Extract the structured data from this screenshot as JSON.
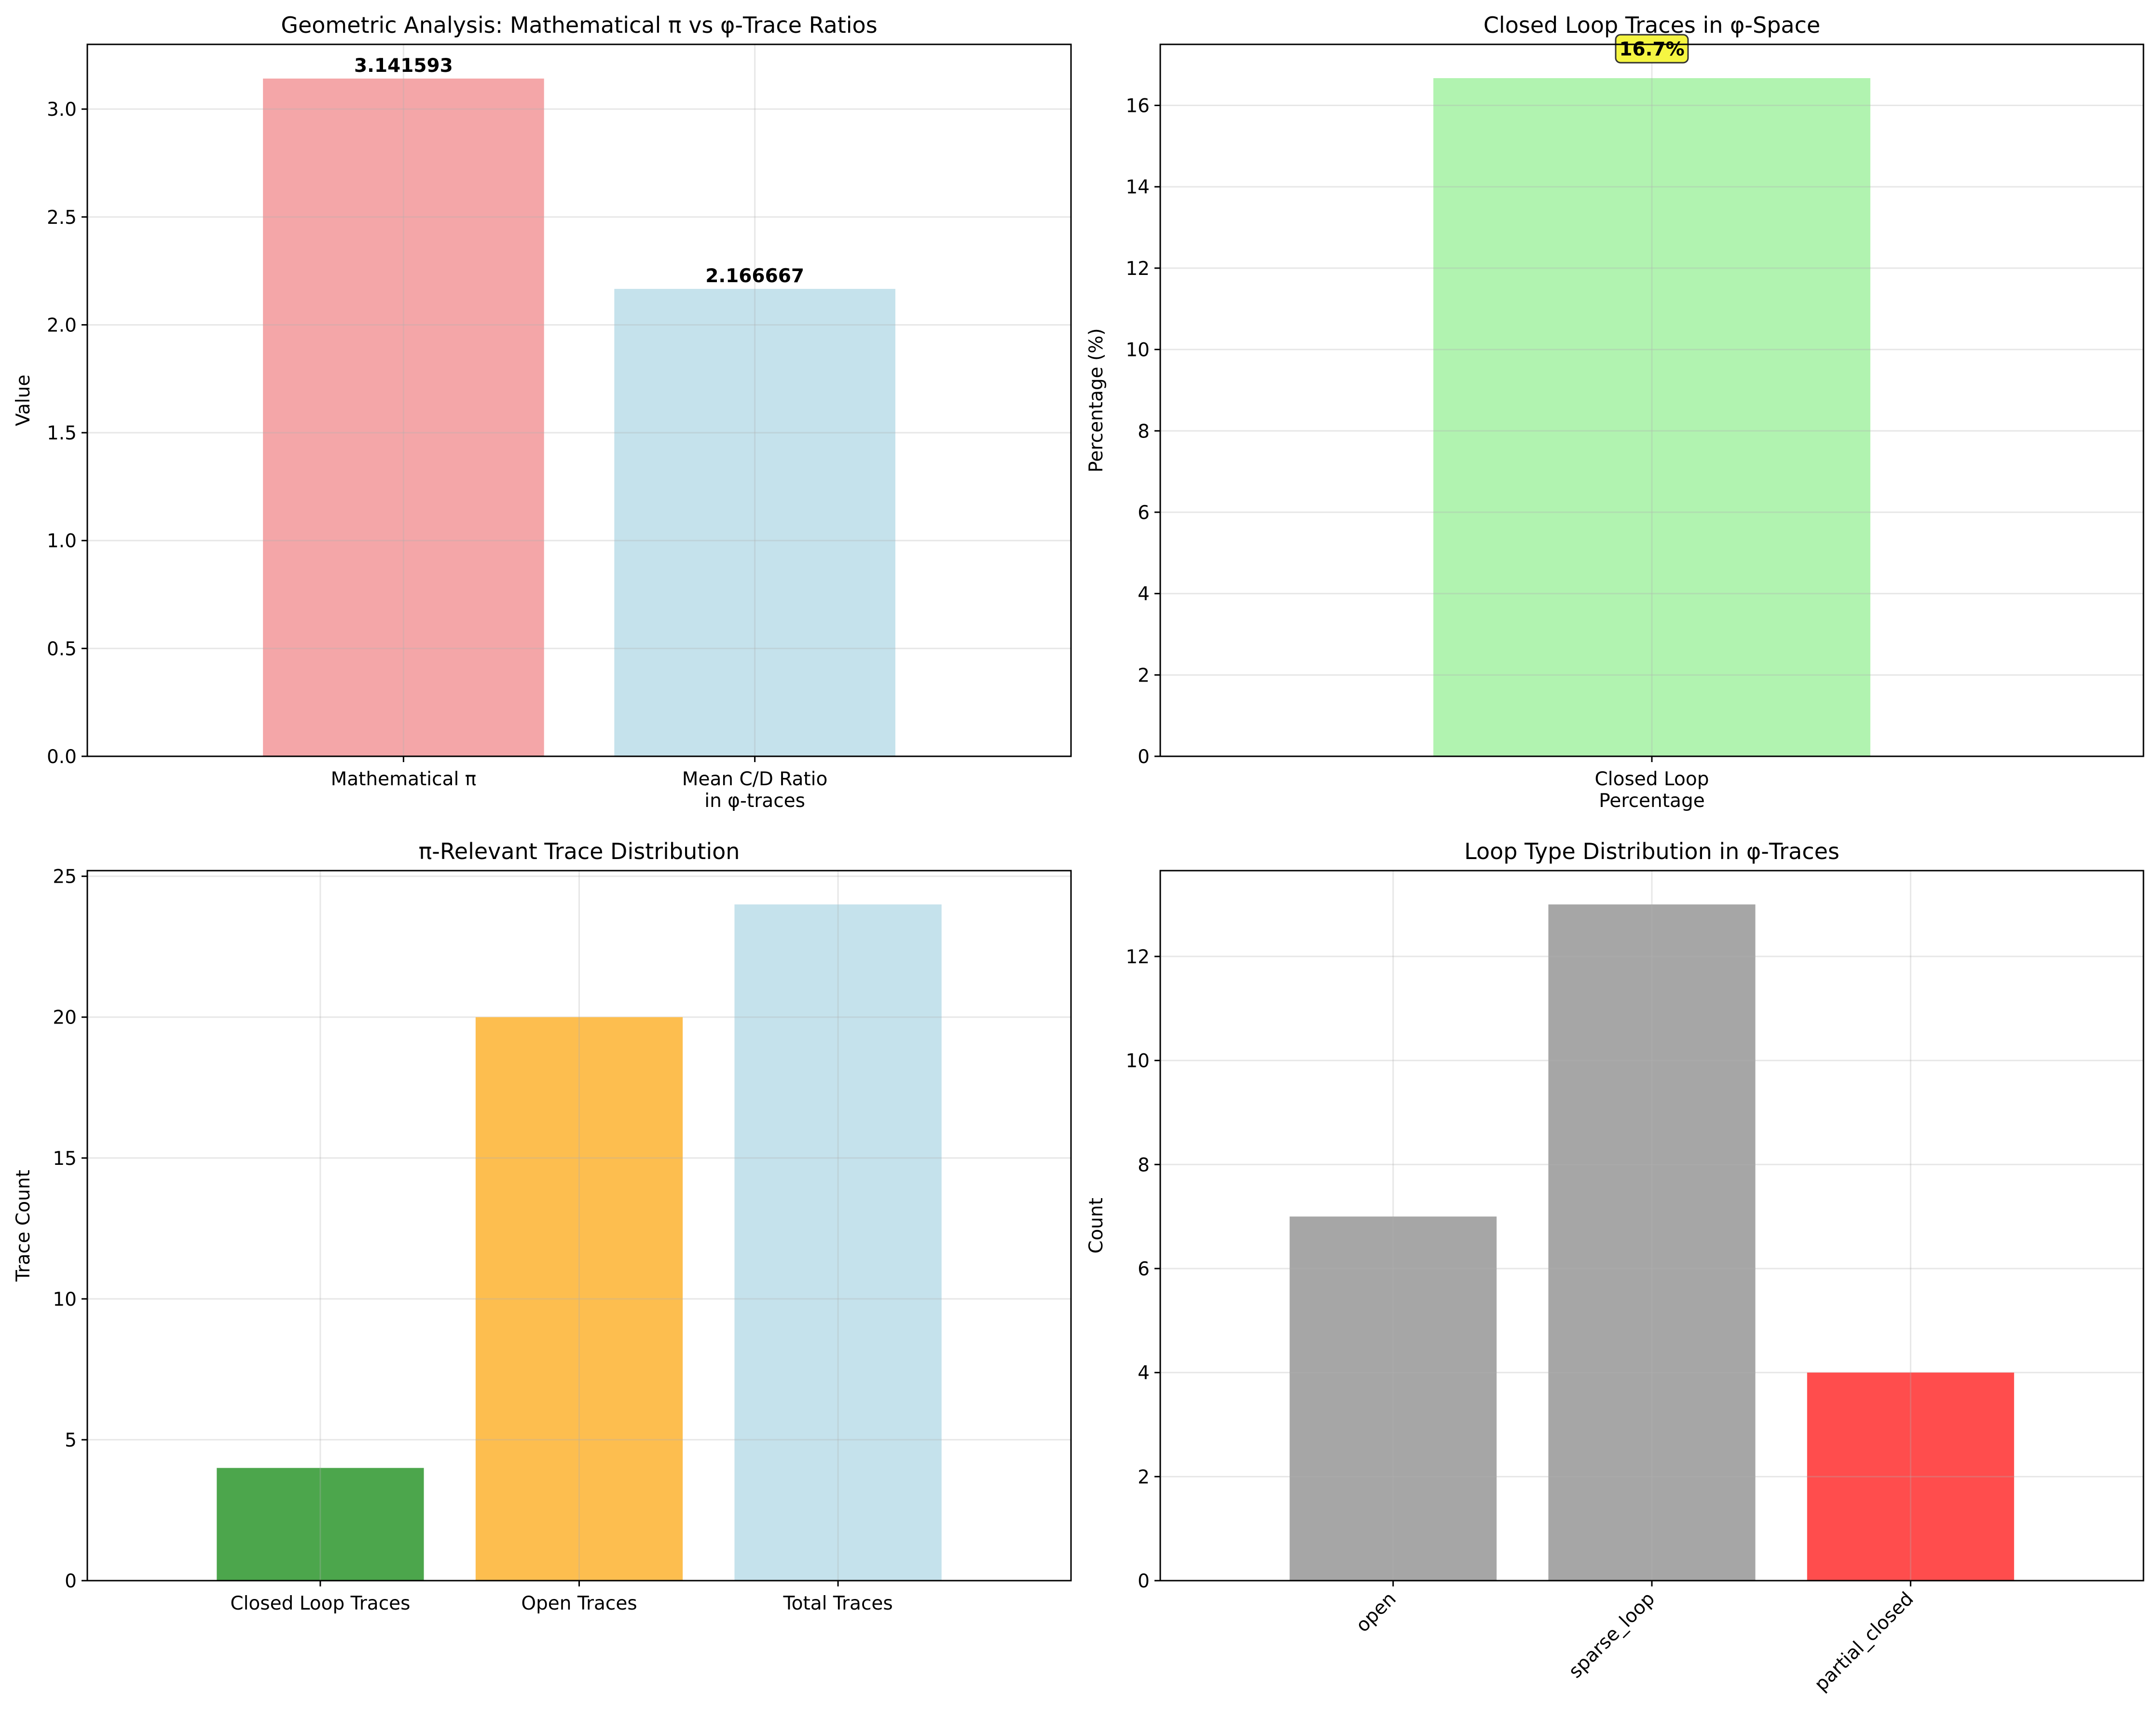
{
  "chart_data": [
    {
      "type": "bar",
      "title": "Geometric Analysis: Mathematical π vs φ-Trace Ratios",
      "xlabel": "",
      "ylabel": "Value",
      "categories": [
        "Mathematical π",
        "Mean C/D Ratio\nin φ-traces"
      ],
      "values": [
        3.141593,
        2.166667
      ],
      "value_labels": [
        "3.141593",
        "2.166667"
      ],
      "colors": [
        "#f4a6a8",
        "#c5e2ec"
      ],
      "ylim": [
        0,
        3.3
      ],
      "yticks": [
        0.0,
        0.5,
        1.0,
        1.5,
        2.0,
        2.5,
        3.0
      ],
      "ytick_labels": [
        "0.0",
        "0.5",
        "1.0",
        "1.5",
        "2.0",
        "2.5",
        "3.0"
      ],
      "grid": true
    },
    {
      "type": "bar",
      "title": "Closed Loop Traces in φ-Space",
      "xlabel": "",
      "ylabel": "Percentage (%)",
      "categories": [
        "Closed Loop\nPercentage"
      ],
      "values": [
        16.67
      ],
      "annotation": "16.7%",
      "colors": [
        "#b1f3b0"
      ],
      "annotation_color": "#f5f542",
      "ylim": [
        0,
        17.5
      ],
      "yticks": [
        0,
        2,
        4,
        6,
        8,
        10,
        12,
        14,
        16
      ],
      "ytick_labels": [
        "0",
        "2",
        "4",
        "6",
        "8",
        "10",
        "12",
        "14",
        "16"
      ],
      "grid": true
    },
    {
      "type": "bar",
      "title": "π-Relevant Trace Distribution",
      "xlabel": "",
      "ylabel": "Trace Count",
      "categories": [
        "Closed Loop Traces",
        "Open Traces",
        "Total Traces"
      ],
      "values": [
        4,
        20,
        24
      ],
      "colors": [
        "#4ca64c",
        "#fdbe4f",
        "#c5e2ec"
      ],
      "ylim": [
        0,
        25.2
      ],
      "yticks": [
        0,
        5,
        10,
        15,
        20,
        25
      ],
      "ytick_labels": [
        "0",
        "5",
        "10",
        "15",
        "20",
        "25"
      ],
      "grid": true
    },
    {
      "type": "bar",
      "title": "Loop Type Distribution in φ-Traces",
      "xlabel": "",
      "ylabel": "Count",
      "categories": [
        "open",
        "sparse_loop",
        "partial_closed"
      ],
      "values": [
        7,
        13,
        4
      ],
      "colors": [
        "#a6a6a6",
        "#a6a6a6",
        "#ff4d4d"
      ],
      "ylim": [
        0,
        13.65
      ],
      "yticks": [
        0,
        2,
        4,
        6,
        8,
        10,
        12
      ],
      "ytick_labels": [
        "0",
        "2",
        "4",
        "6",
        "8",
        "10",
        "12"
      ],
      "xtick_rotation": 45,
      "grid": true
    }
  ]
}
